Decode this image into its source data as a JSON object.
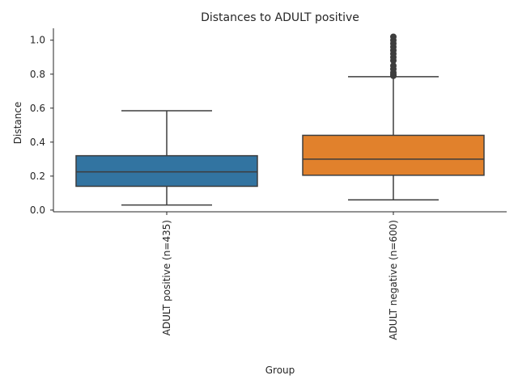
{
  "chart_data": {
    "type": "box",
    "title": "Distances to ADULT positive",
    "xlabel": "Group",
    "ylabel": "Distance",
    "ylim": [
      -0.01,
      1.07
    ],
    "yticks": [
      "0.0",
      "0.2",
      "0.4",
      "0.6",
      "0.8",
      "1.0"
    ],
    "grid": false,
    "categories": [
      "ADULT positive (n=435)",
      "ADULT negative (n=600)"
    ],
    "boxes": [
      {
        "name": "ADULT positive (n=435)",
        "color": "#3274a1",
        "whisker_low": 0.03,
        "q1": 0.14,
        "median": 0.225,
        "q3": 0.32,
        "whisker_high": 0.585,
        "outliers": []
      },
      {
        "name": "ADULT negative (n=600)",
        "color": "#e1812c",
        "whisker_low": 0.06,
        "q1": 0.205,
        "median": 0.3,
        "q3": 0.44,
        "whisker_high": 0.785,
        "outliers": [
          0.79,
          0.8,
          0.81,
          0.83,
          0.85,
          0.88,
          0.9,
          0.92,
          0.94,
          0.96,
          0.98,
          1.0,
          1.02
        ]
      }
    ]
  }
}
